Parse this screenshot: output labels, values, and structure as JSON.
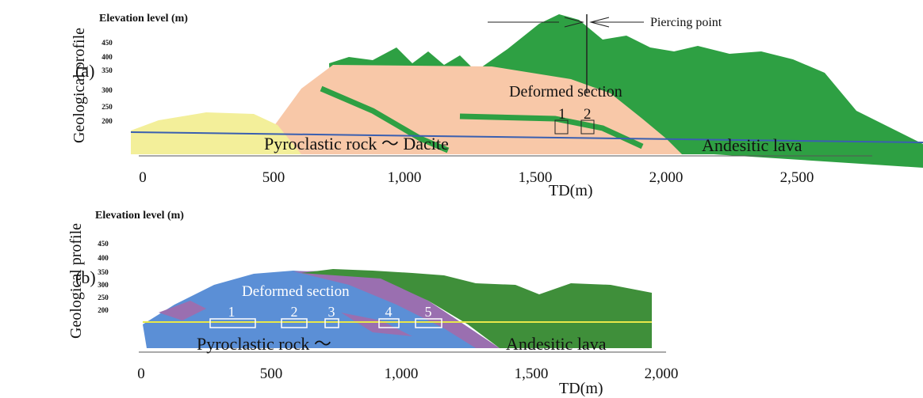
{
  "panel_a": {
    "label": "(a)",
    "y_title": "Elevation level (m)",
    "side_title": "Geological profile",
    "elev_ticks": [
      "450",
      "400",
      "350",
      "300",
      "250",
      "200"
    ],
    "x_ticks": [
      "0",
      "500",
      "1,000",
      "1,500",
      "2,000",
      "2,500"
    ],
    "x_title": "TD(m)",
    "annotations": {
      "piercing": "Piercing point",
      "deformed": "Deformed section",
      "rock": "Pyroclastic rock ～ Dacite",
      "lava": "Andesitic lava",
      "boxes": [
        "1",
        "2"
      ]
    }
  },
  "panel_b": {
    "label": "(b)",
    "y_title": "Elevation level (m)",
    "side_title": "Geological profile",
    "elev_ticks": [
      "450",
      "400",
      "350",
      "300",
      "250",
      "200"
    ],
    "x_ticks": [
      "0",
      "500",
      "1,000",
      "1,500",
      "2,000"
    ],
    "x_title": "TD(m)",
    "annotations": {
      "deformed": "Deformed section",
      "rock": "Pyroclastic rock ～",
      "lava": "Andesitic lava",
      "boxes": [
        "1",
        "2",
        "3",
        "4",
        "5"
      ]
    }
  }
}
